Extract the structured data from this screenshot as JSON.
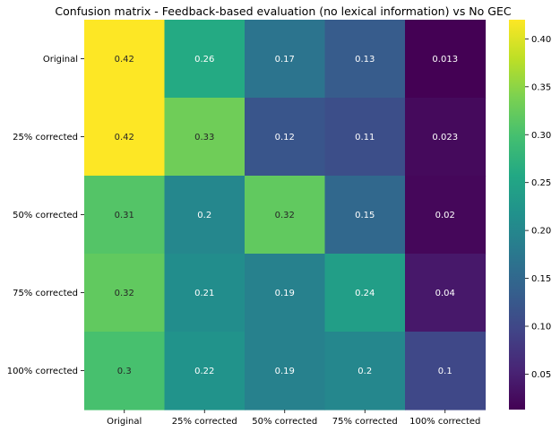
{
  "chart_data": {
    "type": "heatmap",
    "title": "Confusion matrix - Feedback-based evaluation (no lexical information) vs No GEC",
    "xlabel": "",
    "ylabel": "",
    "rows": [
      "Original",
      "25% corrected",
      "50% corrected",
      "75% corrected",
      "100% corrected"
    ],
    "columns": [
      "Original",
      "25% corrected",
      "50% corrected",
      "75% corrected",
      "100% corrected"
    ],
    "values": [
      [
        0.42,
        0.26,
        0.17,
        0.13,
        0.013
      ],
      [
        0.42,
        0.33,
        0.12,
        0.11,
        0.023
      ],
      [
        0.31,
        0.2,
        0.32,
        0.15,
        0.02
      ],
      [
        0.32,
        0.21,
        0.19,
        0.24,
        0.04
      ],
      [
        0.3,
        0.22,
        0.19,
        0.2,
        0.1
      ]
    ],
    "value_labels": [
      [
        "0.42",
        "0.26",
        "0.17",
        "0.13",
        "0.013"
      ],
      [
        "0.42",
        "0.33",
        "0.12",
        "0.11",
        "0.023"
      ],
      [
        "0.31",
        "0.2",
        "0.32",
        "0.15",
        "0.02"
      ],
      [
        "0.32",
        "0.21",
        "0.19",
        "0.24",
        "0.04"
      ],
      [
        "0.3",
        "0.22",
        "0.19",
        "0.2",
        "0.1"
      ]
    ],
    "colormap": "viridis",
    "colorbar": {
      "min": 0.013,
      "max": 0.42,
      "ticks": [
        0.05,
        0.1,
        0.15,
        0.2,
        0.25,
        0.3,
        0.35,
        0.4
      ],
      "tick_labels": [
        "0.05",
        "0.10",
        "0.15",
        "0.20",
        "0.25",
        "0.30",
        "0.35",
        "0.40"
      ]
    },
    "grid": false,
    "legend": "colorbar-right"
  }
}
